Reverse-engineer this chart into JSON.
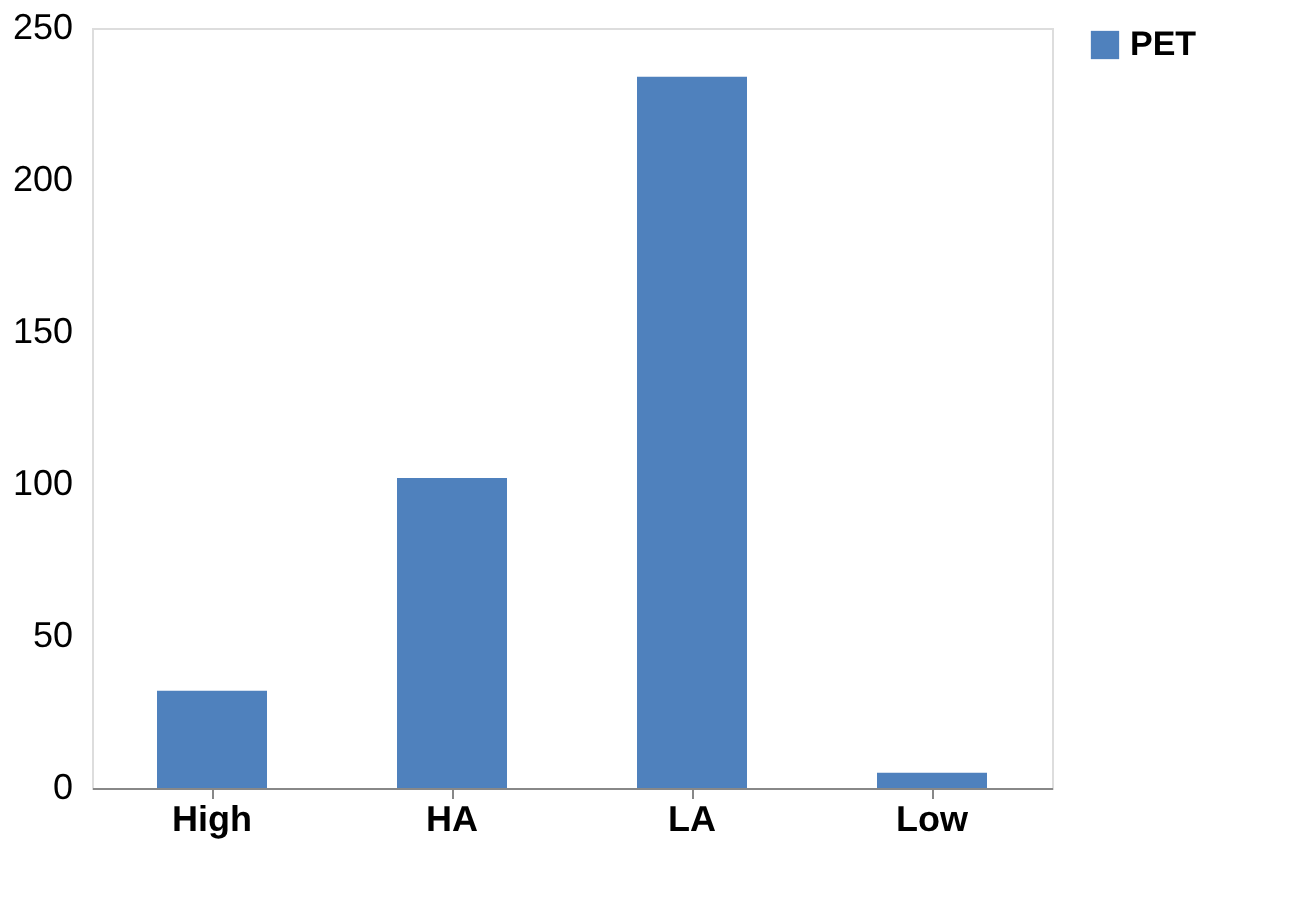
{
  "chart_data": {
    "type": "bar",
    "categories": [
      "High",
      "HA",
      "LA",
      "Low"
    ],
    "series": [
      {
        "name": "PET",
        "color": "#4f81bd",
        "values": [
          32,
          102,
          234,
          5
        ]
      }
    ],
    "ylim": [
      0,
      250
    ],
    "yticks": [
      0,
      50,
      100,
      150,
      200,
      250
    ],
    "grid": false,
    "legend": "right"
  }
}
